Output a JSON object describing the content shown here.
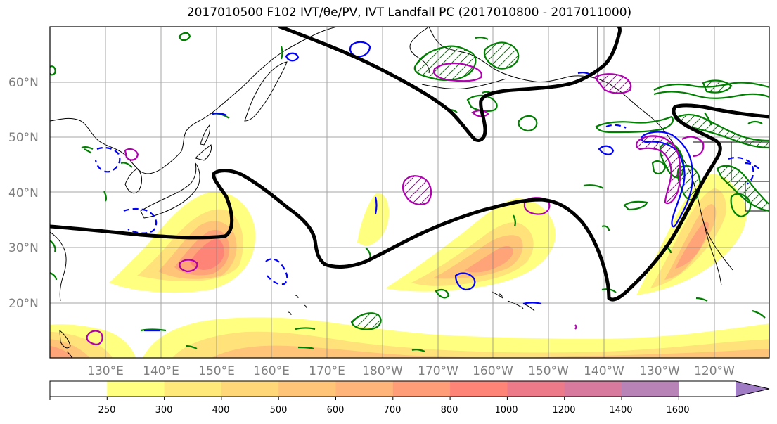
{
  "title": "2017010500 F102 IVT/θe/PV, IVT Landfall PC (2017010800 - 2017011000)",
  "lat_labels": [
    "60°N",
    "50°N",
    "40°N",
    "30°N",
    "20°N"
  ],
  "lon_labels": [
    "130°E",
    "140°E",
    "150°E",
    "160°E",
    "170°E",
    "180°W",
    "170°W",
    "160°W",
    "150°W",
    "140°W",
    "130°W",
    "120°W"
  ],
  "colorbar": {
    "levels": [
      "250",
      "300",
      "400",
      "500",
      "600",
      "700",
      "800",
      "1000",
      "1200",
      "1400",
      "1600"
    ],
    "colors": [
      "#ffffff",
      "#ffff80",
      "#ffe97a",
      "#ffd678",
      "#ffc478",
      "#ffb47a",
      "#ff9d78",
      "#ff8478",
      "#ec7a88",
      "#d87a9e",
      "#b884b8",
      "#a07cc4"
    ]
  },
  "ivt_colors": {
    "level1": "#ffff80",
    "level2": "#ffe27a",
    "level3": "#ffc478",
    "level4": "#ffa478",
    "level5": "#ff8478",
    "level6": "#ec7a88"
  },
  "contour_colors": {
    "landfall_pc": "#000000",
    "pv": "#008000",
    "theta_e": "#0000ff",
    "pv_extra": "#b000b0"
  }
}
